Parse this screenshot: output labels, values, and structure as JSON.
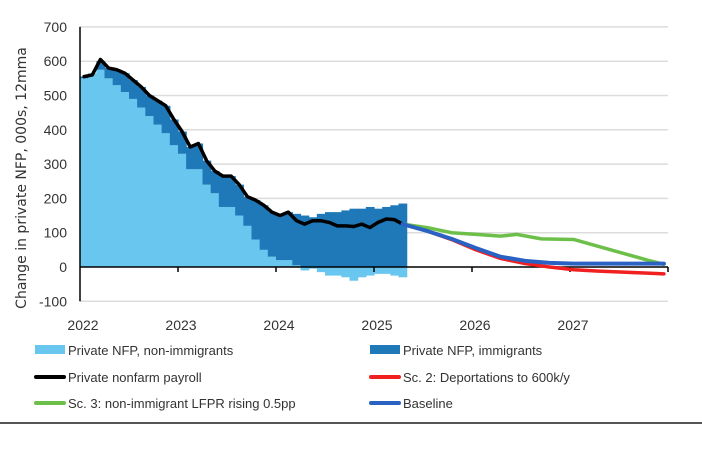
{
  "chart_data": {
    "type": "bar+line",
    "title": "",
    "xlabel": "",
    "ylabel": "Change in private NFP, 000s, 12mma",
    "ylim": [
      -100,
      700
    ],
    "xlim": [
      "2022-01",
      "2028-01"
    ],
    "yticks": [
      -100,
      0,
      100,
      200,
      300,
      400,
      500,
      600,
      700
    ],
    "xticks": [
      "2022",
      "2023",
      "2024",
      "2025",
      "2026",
      "2027"
    ],
    "grid": true,
    "legend_position": "bottom",
    "colors": {
      "non_immigrants": "#69c6ef",
      "immigrants": "#1f78b8",
      "payroll": "#000000",
      "sc2": "#f02020",
      "sc3": "#6cc04a",
      "baseline": "#2a62c4"
    },
    "months_hist": [
      "2022-01",
      "2022-02",
      "2022-03",
      "2022-04",
      "2022-05",
      "2022-06",
      "2022-07",
      "2022-08",
      "2022-09",
      "2022-10",
      "2022-11",
      "2022-12",
      "2023-01",
      "2023-02",
      "2023-03",
      "2023-04",
      "2023-05",
      "2023-06",
      "2023-07",
      "2023-08",
      "2023-09",
      "2023-10",
      "2023-11",
      "2023-12",
      "2024-01",
      "2024-02",
      "2024-03",
      "2024-04",
      "2024-05",
      "2024-06",
      "2024-07",
      "2024-08",
      "2024-09",
      "2024-10",
      "2024-11",
      "2024-12",
      "2025-01",
      "2025-02",
      "2025-03",
      "2025-04"
    ],
    "series": [
      {
        "name": "Private NFP, non-immigrants",
        "kind": "bar",
        "values": [
          550,
          565,
          575,
          550,
          530,
          510,
          490,
          465,
          440,
          415,
          390,
          355,
          330,
          285,
          285,
          240,
          215,
          175,
          175,
          150,
          120,
          80,
          50,
          30,
          20,
          20,
          5,
          -10,
          -5,
          -15,
          -25,
          -25,
          -30,
          -40,
          -30,
          -25,
          -20,
          -20,
          -25,
          -30
        ]
      },
      {
        "name": "Private NFP, immigrants",
        "kind": "bar",
        "values": [
          5,
          0,
          25,
          30,
          45,
          55,
          55,
          60,
          60,
          70,
          80,
          75,
          65,
          65,
          75,
          70,
          65,
          90,
          90,
          90,
          85,
          115,
          130,
          130,
          130,
          140,
          150,
          150,
          145,
          155,
          160,
          160,
          165,
          170,
          170,
          175,
          170,
          175,
          180,
          185
        ]
      },
      {
        "name": "Private nonfarm payroll",
        "kind": "line",
        "values": [
          555,
          560,
          605,
          580,
          575,
          565,
          545,
          525,
          500,
          485,
          470,
          430,
          395,
          350,
          360,
          310,
          280,
          265,
          265,
          240,
          205,
          195,
          180,
          160,
          150,
          160,
          135,
          125,
          135,
          135,
          130,
          120,
          120,
          118,
          125,
          115,
          130,
          140,
          138,
          125
        ]
      },
      {
        "name": "Sc. 2: Deportations to 600k/y",
        "kind": "line",
        "x": [
          "2025-04",
          "2025-07",
          "2025-10",
          "2026-01",
          "2026-04",
          "2026-07",
          "2026-10",
          "2027-01",
          "2027-04",
          "2027-07",
          "2027-10",
          "2027-12"
        ],
        "values": [
          125,
          105,
          80,
          50,
          25,
          10,
          0,
          -8,
          -12,
          -15,
          -18,
          -20
        ]
      },
      {
        "name": "Sc. 3: non-immigrant LFPR rising 0.5pp",
        "kind": "line",
        "x": [
          "2025-04",
          "2025-07",
          "2025-10",
          "2026-01",
          "2026-04",
          "2026-06",
          "2026-09",
          "2027-01",
          "2027-04",
          "2027-07",
          "2027-10",
          "2027-12"
        ],
        "values": [
          125,
          115,
          100,
          95,
          90,
          95,
          82,
          80,
          60,
          40,
          20,
          8
        ]
      },
      {
        "name": "Baseline",
        "kind": "line",
        "x": [
          "2025-04",
          "2025-07",
          "2025-10",
          "2026-01",
          "2026-04",
          "2026-07",
          "2026-10",
          "2027-01",
          "2027-04",
          "2027-07",
          "2027-10",
          "2027-12"
        ],
        "values": [
          125,
          105,
          82,
          55,
          30,
          18,
          12,
          10,
          10,
          10,
          10,
          10
        ]
      }
    ],
    "legend": [
      {
        "label": "Private NFP, non-immigrants",
        "key": "non_immigrants",
        "style": "bar"
      },
      {
        "label": "Private NFP, immigrants",
        "key": "immigrants",
        "style": "bar"
      },
      {
        "label": "Private nonfarm payroll",
        "key": "payroll",
        "style": "line"
      },
      {
        "label": "Sc. 2: Deportations to 600k/y",
        "key": "sc2",
        "style": "line"
      },
      {
        "label": "Sc. 3: non-immigrant LFPR rising 0.5pp",
        "key": "sc3",
        "style": "line"
      },
      {
        "label": "Baseline",
        "key": "baseline",
        "style": "line"
      }
    ]
  }
}
